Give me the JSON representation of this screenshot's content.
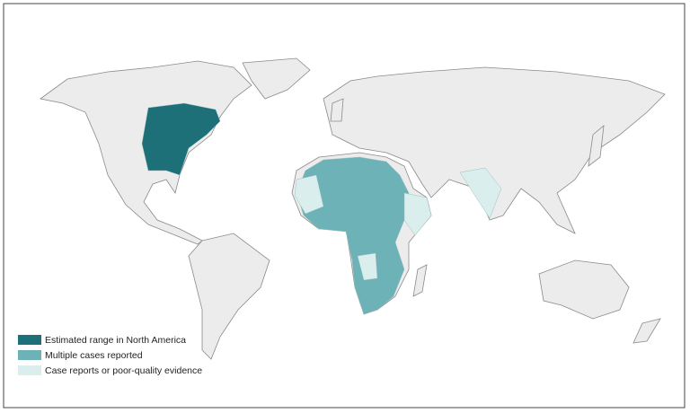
{
  "legend": [
    {
      "label": "Estimated range in North America",
      "color": "#1d6f78"
    },
    {
      "label": "Multiple cases reported",
      "color": "#6db2b7"
    },
    {
      "label": "Case reports or poor-quality evidence",
      "color": "#dbeeee"
    }
  ]
}
